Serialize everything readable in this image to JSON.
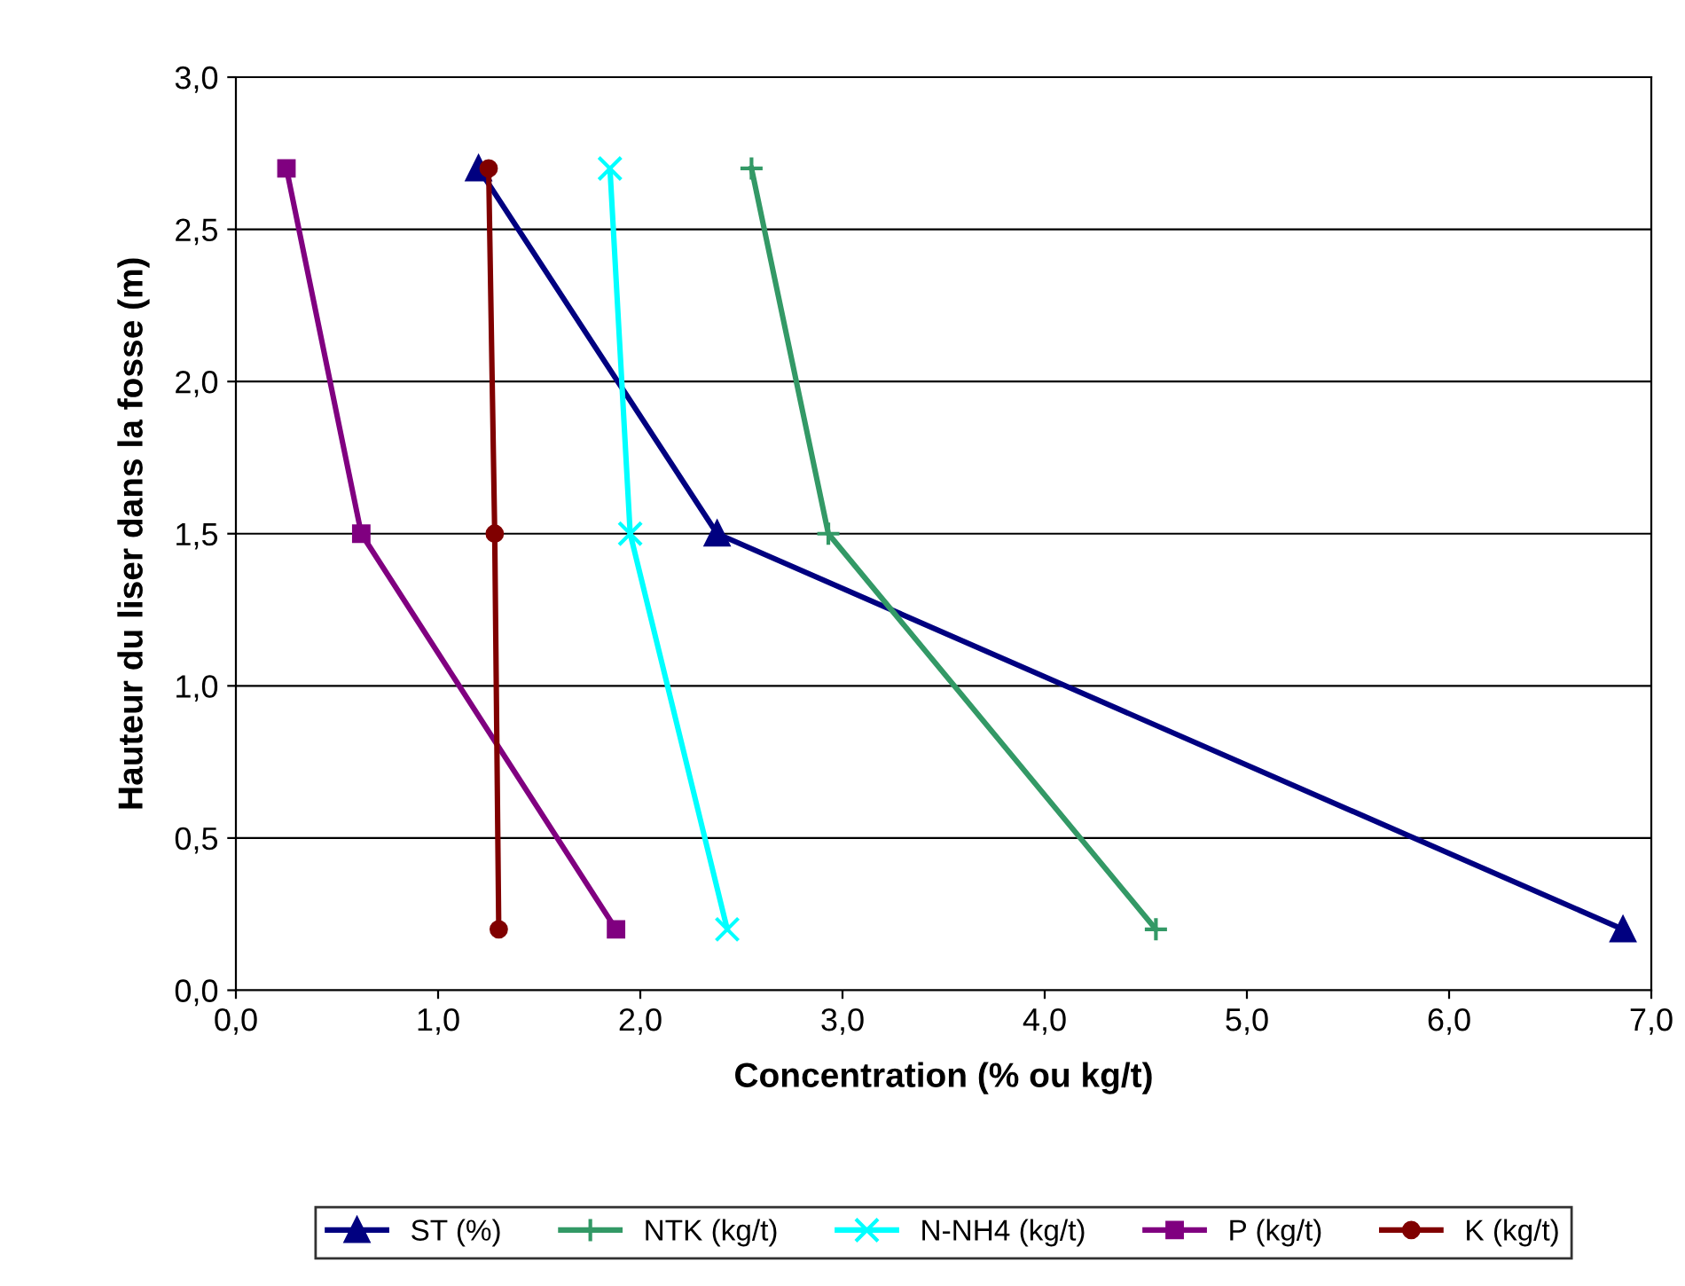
{
  "chart_data": {
    "type": "line",
    "xlabel": "Concentration (% ou kg/t)",
    "ylabel": "Hauteur du liser dans la fosse (m)",
    "xlim": [
      0,
      7
    ],
    "ylim": [
      0,
      3
    ],
    "xticks": [
      {
        "value": 0,
        "label": "0,0"
      },
      {
        "value": 1,
        "label": "1,0"
      },
      {
        "value": 2,
        "label": "2,0"
      },
      {
        "value": 3,
        "label": "3,0"
      },
      {
        "value": 4,
        "label": "4,0"
      },
      {
        "value": 5,
        "label": "5,0"
      },
      {
        "value": 6,
        "label": "6,0"
      },
      {
        "value": 7,
        "label": "7,0"
      }
    ],
    "yticks": [
      {
        "value": 0,
        "label": "0,0"
      },
      {
        "value": 0.5,
        "label": "0,5"
      },
      {
        "value": 1,
        "label": "1,0"
      },
      {
        "value": 1.5,
        "label": "1,5"
      },
      {
        "value": 2,
        "label": "2,0"
      },
      {
        "value": 2.5,
        "label": "2,5"
      },
      {
        "value": 3,
        "label": "3,0"
      }
    ],
    "grid": "y",
    "legend": "bottom",
    "series": [
      {
        "name": "ST (%)",
        "color": "#000080",
        "marker": "triangle",
        "x": [
          1.2,
          2.38,
          6.86
        ],
        "values": [
          2.7,
          1.5,
          0.2
        ]
      },
      {
        "name": "NTK (kg/t)",
        "color": "#339966",
        "marker": "cross",
        "x": [
          2.55,
          2.93,
          4.55
        ],
        "values": [
          2.7,
          1.5,
          0.2
        ]
      },
      {
        "name": "N-NH4 (kg/t)",
        "color": "#00ffff",
        "marker": "x",
        "x": [
          1.85,
          1.95,
          2.43
        ],
        "values": [
          2.7,
          1.5,
          0.2
        ]
      },
      {
        "name": "P (kg/t)",
        "color": "#800080",
        "marker": "square",
        "x": [
          0.25,
          0.62,
          1.88
        ],
        "values": [
          2.7,
          1.5,
          0.2
        ]
      },
      {
        "name": "K (kg/t)",
        "color": "#800000",
        "marker": "circle",
        "x": [
          1.25,
          1.28,
          1.3
        ],
        "values": [
          2.7,
          1.5,
          0.2
        ]
      }
    ]
  }
}
